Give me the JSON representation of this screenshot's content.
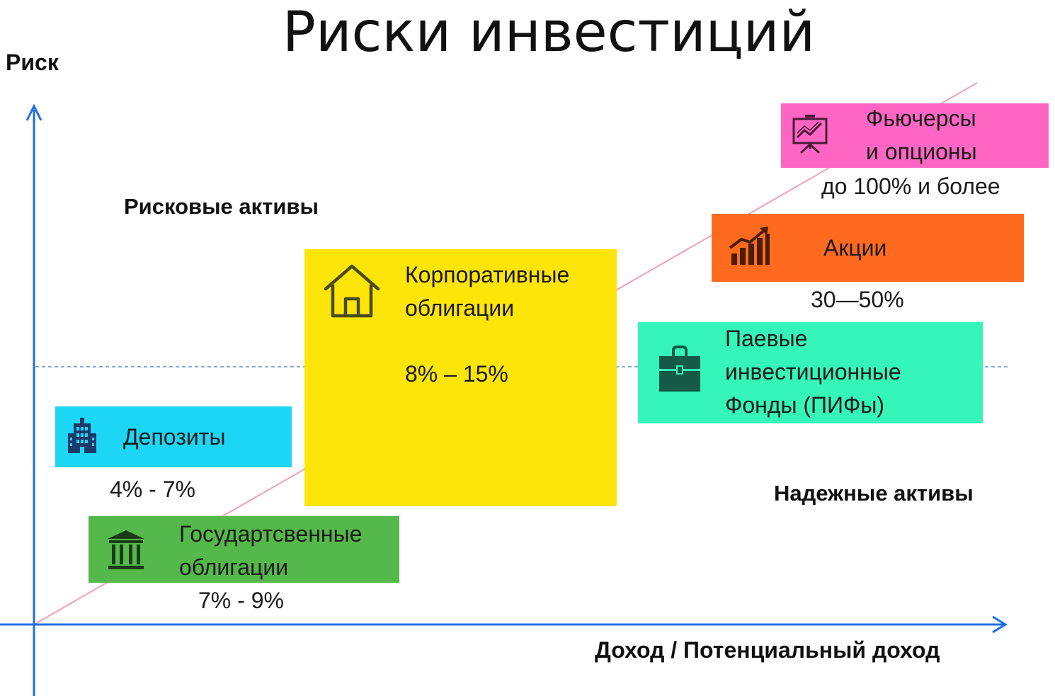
{
  "title": "Риски инвестиций",
  "axes": {
    "y_label": "Риск",
    "x_label": "Доход / Потенциальный доход"
  },
  "zones": {
    "risky": "Рисковые активы",
    "safe": "Надежные активы"
  },
  "colors": {
    "axis": "#1f6fe0",
    "trend_line": "#f2a0b8",
    "divider": "#5f8fd0",
    "deposits": "#1dd6f5",
    "gov_bonds": "#55b84a",
    "corp_bonds": "#fde50a",
    "funds": "#35f5b9",
    "stocks": "#ff6a1f",
    "futures": "#ff66c4"
  },
  "assets": [
    {
      "id": "deposits",
      "lines": [
        "Депозиты"
      ],
      "rate": "4% - 7%",
      "icon": "bank-building-icon"
    },
    {
      "id": "gov_bonds",
      "lines": [
        "Государтсвенные",
        "облигации"
      ],
      "rate": "7% - 9%",
      "icon": "government-building-icon"
    },
    {
      "id": "corp_bonds",
      "lines": [
        "Корпоративные",
        "облигации"
      ],
      "rate": "8% – 15%",
      "icon": "house-icon"
    },
    {
      "id": "funds",
      "lines": [
        "Паевые",
        "инвестиционные",
        "Фонды (ПИФы)"
      ],
      "icon": "briefcase-icon"
    },
    {
      "id": "stocks",
      "lines": [
        "Акции"
      ],
      "rate": "30—50%",
      "icon": "growth-chart-icon"
    },
    {
      "id": "futures",
      "lines": [
        "Фьючерсы",
        "и опционы"
      ],
      "rate": "до 100% и более",
      "icon": "presentation-board-icon"
    }
  ]
}
